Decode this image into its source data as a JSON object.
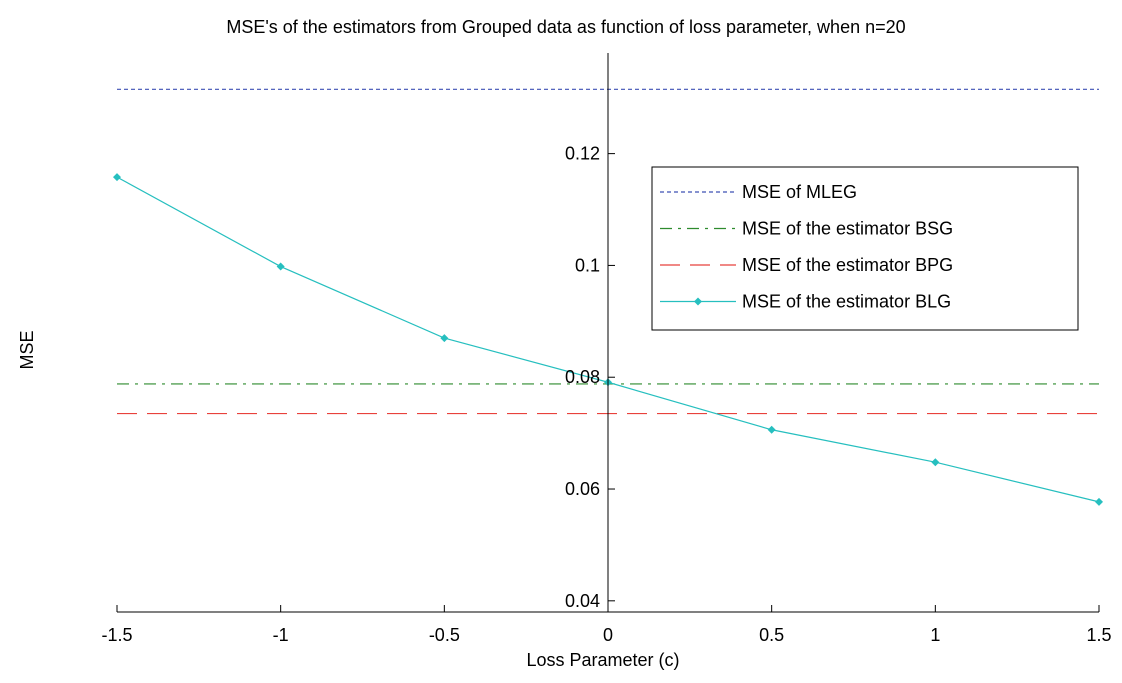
{
  "chart_data": {
    "type": "line",
    "title": "MSE's of the estimators from Grouped data as function of loss parameter, when n=20",
    "xlabel": "Loss Parameter (c)",
    "ylabel": "MSE",
    "xlim": [
      -1.5,
      1.5
    ],
    "ylim": [
      0.038,
      0.138
    ],
    "x_ticks": [
      -1.5,
      -1,
      -0.5,
      0,
      0.5,
      1,
      1.5
    ],
    "x_tick_labels": [
      "-1.5",
      "-1",
      "-0.5",
      "0",
      "0.5",
      "1",
      "1.5"
    ],
    "y_ticks": [
      0.04,
      0.06,
      0.08,
      0.1,
      0.12
    ],
    "y_tick_labels": [
      "0.04",
      "0.06",
      "0.08",
      "0.1",
      "0.12"
    ],
    "grid": false,
    "legend_position": "top-right",
    "series": [
      {
        "name": "MSE of MLEG",
        "color": "#3f51b5",
        "style": "dotted",
        "marker": "none",
        "x": [
          -1.5,
          1.5
        ],
        "y": [
          0.1315,
          0.1315
        ]
      },
      {
        "name": "MSE of the estimator BSG",
        "color": "#2e8b2e",
        "style": "dashdot",
        "marker": "none",
        "x": [
          -1.5,
          1.5
        ],
        "y": [
          0.0788,
          0.0788
        ]
      },
      {
        "name": "MSE of the estimator BPG",
        "color": "#e8423c",
        "style": "dashed",
        "marker": "none",
        "x": [
          -1.5,
          1.5
        ],
        "y": [
          0.0735,
          0.0735
        ]
      },
      {
        "name": "MSE of the estimator BLG",
        "color": "#26bfbf",
        "style": "solid",
        "marker": "diamond",
        "x": [
          -1.5,
          -1,
          -0.5,
          0,
          0.5,
          1,
          1.5
        ],
        "y": [
          0.1158,
          0.0998,
          0.087,
          0.0791,
          0.0706,
          0.0648,
          0.0577
        ]
      }
    ]
  }
}
